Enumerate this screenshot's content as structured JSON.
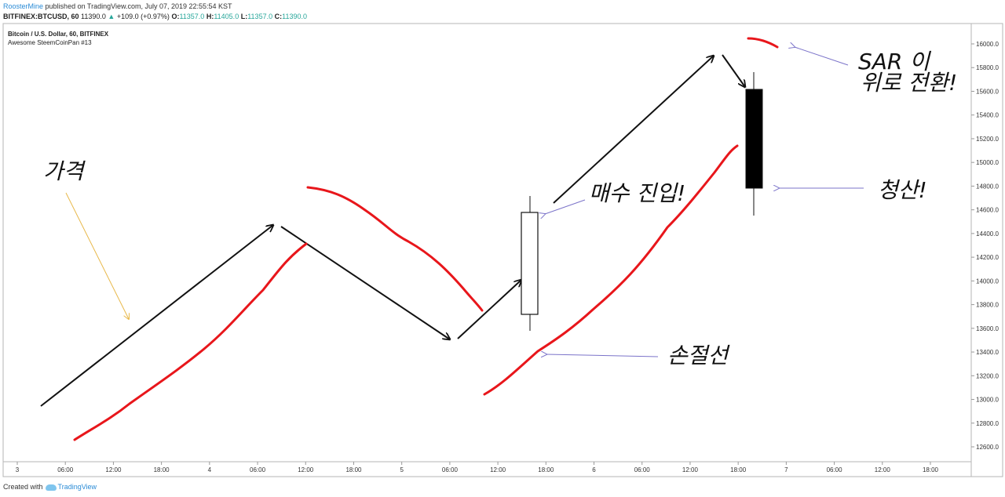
{
  "header": {
    "author": "RoosterMine",
    "published_text": "published on TradingView.com, July 07, 2019 22:55:54 KST"
  },
  "info": {
    "symbol": "BITFINEX:BTCUSD, 60",
    "last": "11390.0",
    "change_arrow": "▲",
    "change": "+109.0 (+0.97%)",
    "o_label": "O:",
    "o": "11357.0",
    "h_label": "H:",
    "h": "11405.0",
    "l_label": "L:",
    "l": "11357.0",
    "c_label": "C:",
    "c": "11390.0"
  },
  "footer": {
    "created_with": "Created with",
    "brand": "TradingView"
  },
  "chart_data": {
    "type": "line",
    "title": "Bitcoin / U.S. Dollar, 60, BITFINEX",
    "subtitle": "Awesome SteemCoinPan #13",
    "ylim": [
      12500,
      16250
    ],
    "y_ticks": [
      "12600.0",
      "12800.0",
      "13000.0",
      "13200.0",
      "13400.0",
      "13600.0",
      "13800.0",
      "14000.0",
      "14200.0",
      "14400.0",
      "14600.0",
      "14800.0",
      "15000.0",
      "15200.0",
      "15400.0",
      "15600.0",
      "15800.0",
      "16000.0"
    ],
    "x_ticks": [
      "3",
      "06:00",
      "12:00",
      "18:00",
      "4",
      "06:00",
      "12:00",
      "18:00",
      "5",
      "06:00",
      "12:00",
      "18:00",
      "6",
      "06:00",
      "12:00",
      "18:00",
      "7",
      "06:00",
      "12:00",
      "18:00"
    ],
    "grid": false,
    "colors": {
      "sar": "#e8161b",
      "arrows": "#111111",
      "annotation_arrow": "#7b73c9",
      "price_annotation_arrow": "#e8b84a"
    },
    "annotations": [
      "가격",
      "매수 진입!",
      "SAR 이",
      "위로 전환!",
      "청산!",
      "손절선"
    ]
  }
}
